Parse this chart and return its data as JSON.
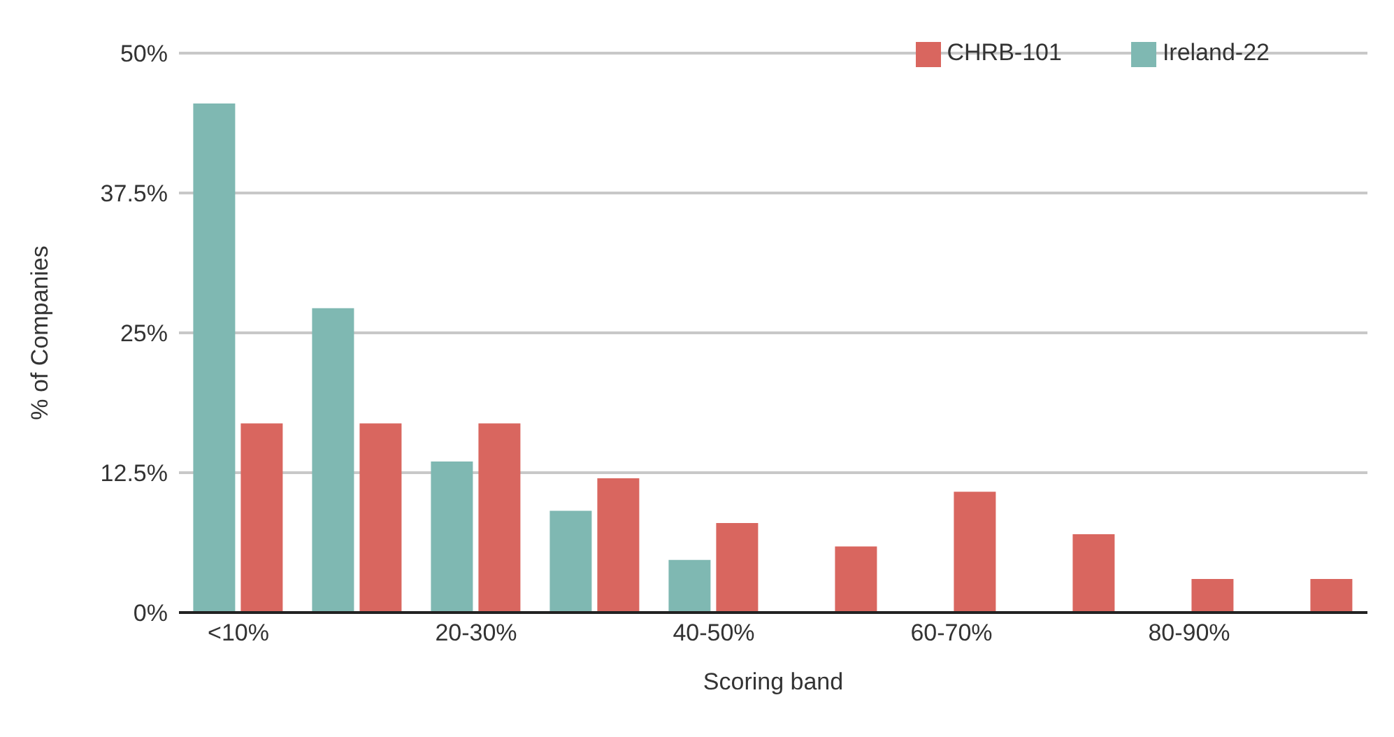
{
  "chart_data": {
    "type": "bar",
    "xlabel": "Scoring band",
    "ylabel": "% of Companies",
    "categories": [
      "<10%",
      null,
      "20-30%",
      null,
      "40-50%",
      null,
      "60-70%",
      null,
      "80-90%",
      null
    ],
    "series": [
      {
        "name": "Ireland-22",
        "color": "#7fb8b2",
        "values": [
          45.5,
          27.2,
          13.5,
          9.1,
          4.7,
          null,
          null,
          null,
          null,
          null
        ]
      },
      {
        "name": "CHRB-101",
        "color": "#d9665f",
        "values": [
          16.9,
          16.9,
          16.9,
          12,
          8,
          5.9,
          10.8,
          7,
          3,
          3
        ]
      }
    ],
    "ylim": [
      0,
      50
    ],
    "yticks": [
      {
        "value": 0,
        "label": "0%"
      },
      {
        "value": 12.5,
        "label": "12.5%"
      },
      {
        "value": 25,
        "label": "25%"
      },
      {
        "value": 37.5,
        "label": "37.5%"
      },
      {
        "value": 50,
        "label": "50%"
      }
    ],
    "grid": "y",
    "legend": "top right"
  }
}
